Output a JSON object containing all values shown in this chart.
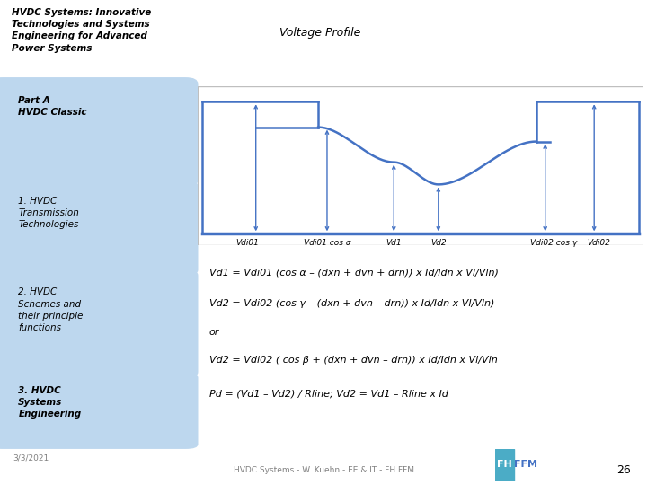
{
  "title_box_text": "HVDC Systems: Innovative\nTechnologies and Systems\nEngineering for Advanced\nPower Systems",
  "title_box_color": "#F4A460",
  "voltage_profile_title": "Voltage Profile",
  "left_panel_items": [
    {
      "text": "Part A\nHVDC Classic",
      "bold": true,
      "color": "#BDD7EE"
    },
    {
      "text": "1. HVDC\nTransmission\nTechnologies",
      "bold": false,
      "color": "#BDD7EE"
    },
    {
      "text": "2. HVDC\nSchemes and\ntheir principle\nfunctions",
      "bold": false,
      "color": "#BDD7EE"
    },
    {
      "text": "3. HVDC\nSystems\nEngineering",
      "bold": true,
      "color": "#BDD7EE"
    }
  ],
  "date_text": "3/3/2021",
  "footer_text": "HVDC Systems - W. Kuehn - EE & IT - FH FFM",
  "page_number": "26",
  "bg_color": "#FFFFFF",
  "plot_bg_color": "#FFFFFF",
  "formula_bg_color": "#D9D9D9",
  "formula_lines": [
    "Vd1 = Vdi01 (cos α – (dxn + dvn + drn)) x Id/Idn x Vl/Vln)",
    "Vd2 = Vdi02 (cos γ – (dxn + dvn – drn)) x Id/Idn x Vl/Vln)",
    "or",
    "Vd2 = Vdi02 ( cos β + (dxn + dvn – drn)) x Id/Idn x Vl/Vln",
    "Pd = (Vd1 – Vd2) / Rline; Vd2 = Vd1 – Rline x Id"
  ],
  "line_color": "#4472C4",
  "plot_labels": [
    "Vdi01",
    "Vdi01 cos α",
    "Vd1",
    "Vd2",
    "Vdi02 cos γ",
    "Vdi02"
  ],
  "vp_title_bg": "#9DC3E6",
  "chart_border_color": "#BFBFBF",
  "logo_green": "#70AD47",
  "logo_text_color": "#4472C4"
}
